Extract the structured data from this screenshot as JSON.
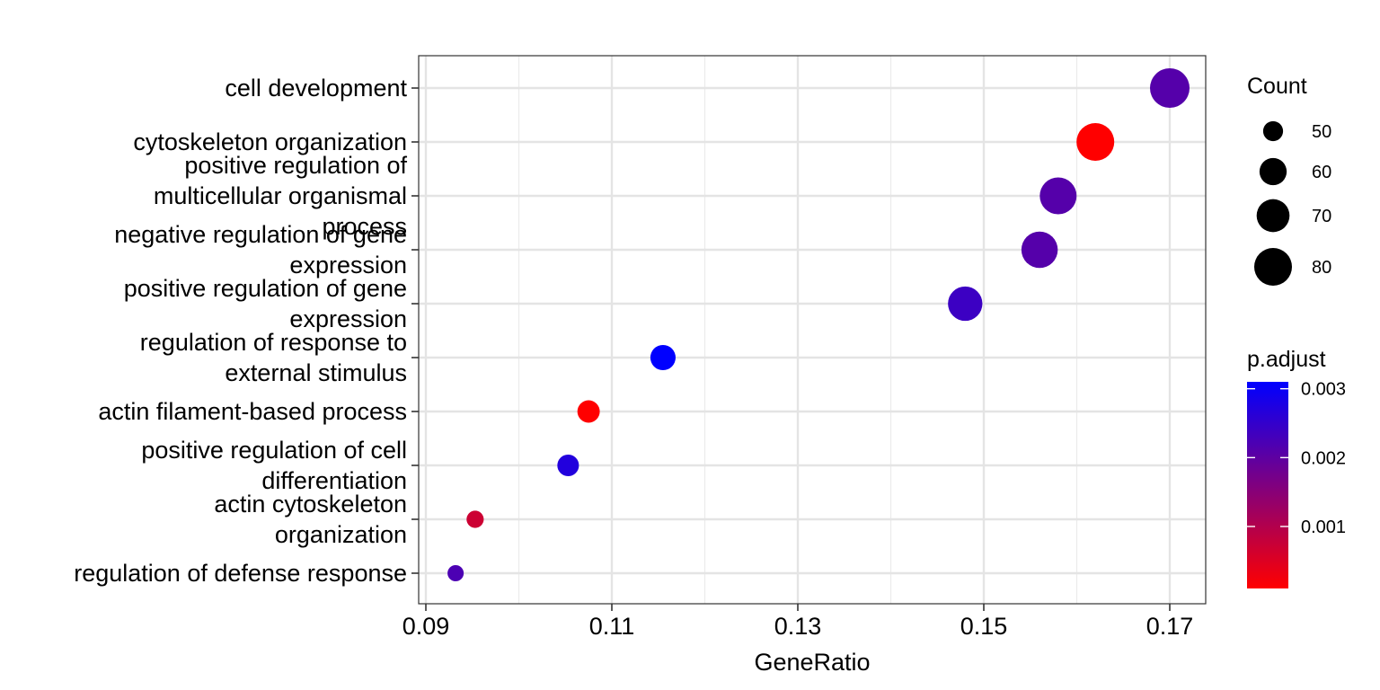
{
  "chart_data": {
    "type": "scatter",
    "title": "",
    "xlabel": "GeneRatio",
    "ylabel": "",
    "xlim": [
      0.0885,
      0.1725
    ],
    "x_ticks": [
      0.09,
      0.11,
      0.13,
      0.15,
      0.17
    ],
    "x_tick_labels": [
      "0.09",
      "0.11",
      "0.13",
      "0.15",
      "0.17"
    ],
    "grid": true,
    "legend_position": "right",
    "categories": [
      "cell development",
      "cytoskeleton organization",
      "positive regulation of multicellular organismal process",
      "negative regulation of gene expression",
      "positive regulation of gene expression",
      "regulation of response to external stimulus",
      "actin filament-based process",
      "positive regulation of cell differentiation",
      "actin cytoskeleton organization",
      "regulation of defense response"
    ],
    "category_label_lines": [
      [
        "cell development"
      ],
      [
        "cytoskeleton organization"
      ],
      [
        "positive regulation of",
        "multicellular organismal",
        "process"
      ],
      [
        "negative regulation of gene",
        "expression"
      ],
      [
        "positive regulation of gene",
        "expression"
      ],
      [
        "regulation of response to",
        "external stimulus"
      ],
      [
        "actin filament-based process"
      ],
      [
        "positive regulation of cell",
        "differentiation"
      ],
      [
        "actin cytoskeleton",
        "organization"
      ],
      [
        "regulation of defense response"
      ]
    ],
    "points": [
      {
        "category": "cell development",
        "gene_ratio": 0.17,
        "count": 84,
        "p_adjust": 0.0021
      },
      {
        "category": "cytoskeleton organization",
        "gene_ratio": 0.162,
        "count": 80,
        "p_adjust": 0.0001
      },
      {
        "category": "positive regulation of multicellular organismal process",
        "gene_ratio": 0.158,
        "count": 78,
        "p_adjust": 0.0021
      },
      {
        "category": "negative regulation of gene expression",
        "gene_ratio": 0.156,
        "count": 77,
        "p_adjust": 0.0021
      },
      {
        "category": "positive regulation of gene expression",
        "gene_ratio": 0.148,
        "count": 73,
        "p_adjust": 0.0024
      },
      {
        "category": "regulation of response to external stimulus",
        "gene_ratio": 0.1155,
        "count": 57,
        "p_adjust": 0.0031
      },
      {
        "category": "actin filament-based process",
        "gene_ratio": 0.1075,
        "count": 53,
        "p_adjust": 0.0001
      },
      {
        "category": "positive regulation of cell differentiation",
        "gene_ratio": 0.1053,
        "count": 52,
        "p_adjust": 0.0027
      },
      {
        "category": "actin cytoskeleton organization",
        "gene_ratio": 0.0953,
        "count": 47,
        "p_adjust": 0.0007
      },
      {
        "category": "regulation of defense response",
        "gene_ratio": 0.0932,
        "count": 46,
        "p_adjust": 0.0022
      }
    ],
    "size_legend": {
      "title": "Count",
      "values": [
        50,
        60,
        70,
        80
      ],
      "labels": [
        "50",
        "60",
        "70",
        "80"
      ]
    },
    "color_legend": {
      "title": "p.adjust",
      "range": [
        0.0001,
        0.0031
      ],
      "breaks": [
        0.001,
        0.002,
        0.003
      ],
      "labels": [
        "0.001",
        "0.002",
        "0.003"
      ],
      "low_color": "#ff0000",
      "high_color": "#0000ff"
    }
  }
}
